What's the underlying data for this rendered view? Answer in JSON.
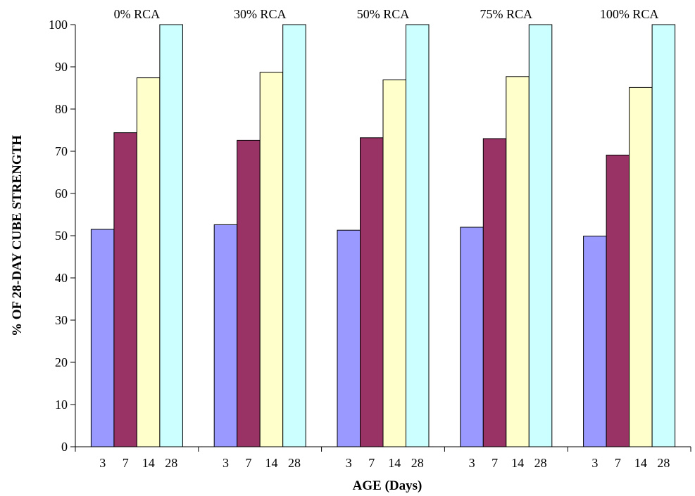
{
  "chart_data": {
    "type": "bar",
    "xlabel": "AGE (Days)",
    "ylabel": "% OF 28-DAY CUBE STRENGTH",
    "ylim": [
      0,
      100
    ],
    "yticks": [
      0,
      10,
      20,
      30,
      40,
      50,
      60,
      70,
      80,
      90,
      100
    ],
    "grid": false,
    "legend": "none",
    "categories": [
      "3",
      "7",
      "14",
      "28"
    ],
    "category_colors": [
      "#9999ff",
      "#993366",
      "#ffffcc",
      "#ccffff"
    ],
    "groups": [
      {
        "name": "0% RCA",
        "values": [
          51.5,
          74.4,
          87.4,
          100
        ]
      },
      {
        "name": "30% RCA",
        "values": [
          52.6,
          72.6,
          88.7,
          100
        ]
      },
      {
        "name": "50% RCA",
        "values": [
          51.3,
          73.2,
          86.9,
          100
        ]
      },
      {
        "name": "75% RCA",
        "values": [
          52.0,
          73.0,
          87.7,
          100
        ]
      },
      {
        "name": "100% RCA",
        "values": [
          49.9,
          69.1,
          85.1,
          100
        ]
      }
    ]
  }
}
